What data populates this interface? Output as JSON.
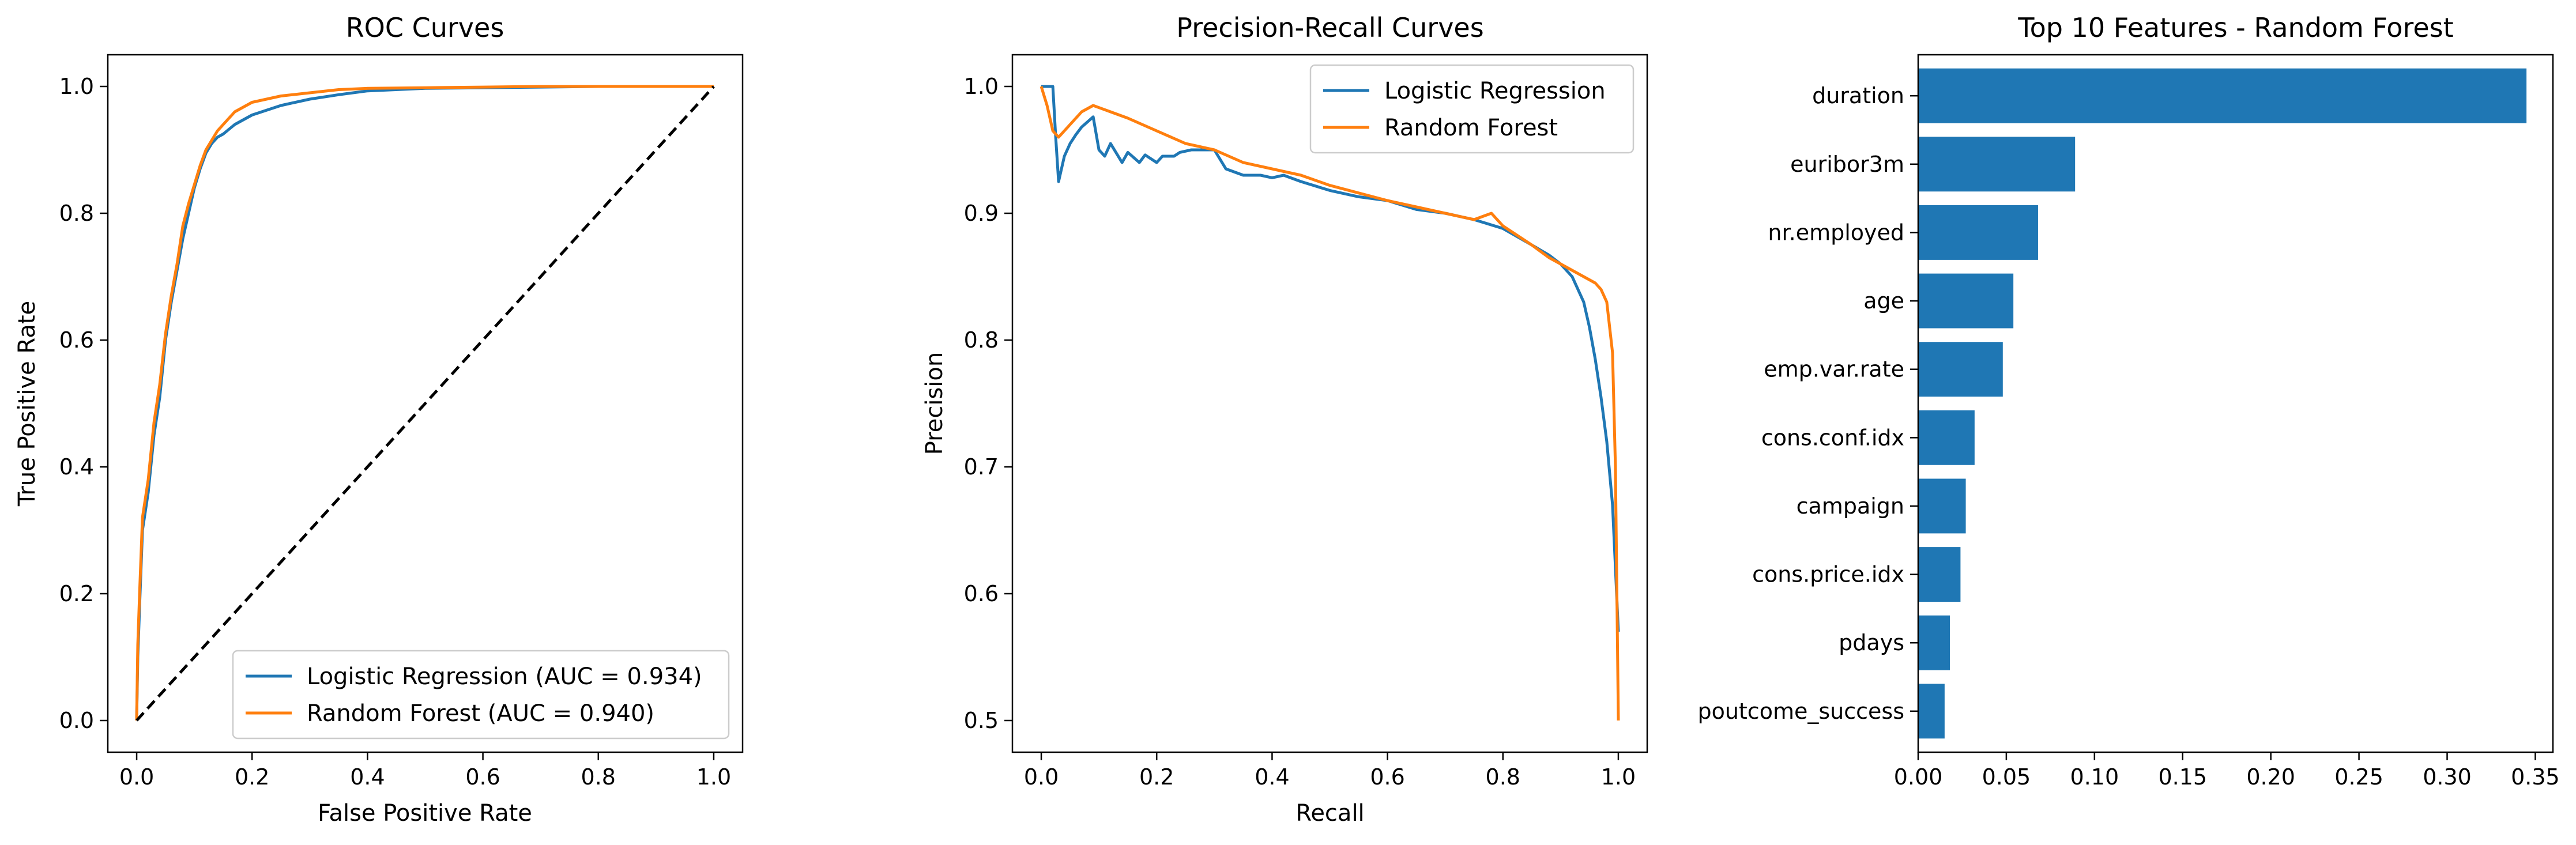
{
  "colors": {
    "series_1": "#1f77b4",
    "series_2": "#ff7f0e",
    "diagonal": "#000000",
    "axes": "#000000"
  },
  "chart_data": [
    {
      "type": "line",
      "title": "ROC Curves",
      "xlabel": "False Positive Rate",
      "ylabel": "True Positive Rate",
      "xlim": [
        -0.05,
        1.05
      ],
      "ylim": [
        -0.05,
        1.05
      ],
      "xticks": [
        "0.0",
        "0.2",
        "0.4",
        "0.6",
        "0.8",
        "1.0"
      ],
      "yticks": [
        "0.0",
        "0.2",
        "0.4",
        "0.6",
        "0.8",
        "1.0"
      ],
      "grid": false,
      "legend_position": "lower-right",
      "series": [
        {
          "name": "Logistic Regression (AUC = 0.934)",
          "color": "#1f77b4",
          "x": [
            0,
            0.002,
            0.005,
            0.01,
            0.02,
            0.03,
            0.04,
            0.05,
            0.06,
            0.07,
            0.08,
            0.09,
            0.1,
            0.11,
            0.12,
            0.13,
            0.14,
            0.15,
            0.17,
            0.2,
            0.25,
            0.3,
            0.35,
            0.4,
            0.5,
            0.6,
            0.7,
            0.8,
            0.9,
            1.0
          ],
          "y": [
            0,
            0.1,
            0.18,
            0.3,
            0.36,
            0.45,
            0.51,
            0.6,
            0.66,
            0.71,
            0.76,
            0.8,
            0.84,
            0.87,
            0.895,
            0.91,
            0.92,
            0.925,
            0.94,
            0.955,
            0.97,
            0.98,
            0.987,
            0.993,
            0.997,
            0.998,
            0.999,
            1.0,
            1.0,
            1.0
          ]
        },
        {
          "name": "Random Forest (AUC = 0.940)",
          "color": "#ff7f0e",
          "x": [
            0,
            0.002,
            0.005,
            0.01,
            0.02,
            0.03,
            0.04,
            0.05,
            0.06,
            0.07,
            0.08,
            0.09,
            0.1,
            0.11,
            0.12,
            0.13,
            0.14,
            0.15,
            0.17,
            0.19,
            0.2,
            0.25,
            0.3,
            0.35,
            0.4,
            0.5,
            0.6,
            0.7,
            0.8,
            0.9,
            1.0
          ],
          "y": [
            0,
            0.12,
            0.2,
            0.32,
            0.38,
            0.47,
            0.53,
            0.61,
            0.67,
            0.72,
            0.78,
            0.815,
            0.845,
            0.875,
            0.9,
            0.915,
            0.93,
            0.94,
            0.96,
            0.97,
            0.975,
            0.985,
            0.99,
            0.995,
            0.997,
            0.998,
            0.999,
            1.0,
            1.0,
            1.0,
            1.0
          ]
        },
        {
          "name": "",
          "color": "#000000",
          "dashed": true,
          "x": [
            0,
            1
          ],
          "y": [
            0,
            1
          ]
        }
      ]
    },
    {
      "type": "line",
      "title": "Precision-Recall Curves",
      "xlabel": "Recall",
      "ylabel": "Precision",
      "xlim": [
        -0.05,
        1.05
      ],
      "ylim": [
        0.475,
        1.025
      ],
      "xticks": [
        "0.0",
        "0.2",
        "0.4",
        "0.6",
        "0.8",
        "1.0"
      ],
      "yticks": [
        "0.5",
        "0.6",
        "0.7",
        "0.8",
        "0.9",
        "1.0"
      ],
      "grid": false,
      "legend_position": "upper-right",
      "series": [
        {
          "name": "Logistic Regression",
          "color": "#1f77b4",
          "x": [
            0,
            0.02,
            0.025,
            0.03,
            0.04,
            0.05,
            0.06,
            0.07,
            0.08,
            0.09,
            0.1,
            0.11,
            0.12,
            0.14,
            0.15,
            0.17,
            0.18,
            0.2,
            0.21,
            0.23,
            0.24,
            0.26,
            0.28,
            0.3,
            0.32,
            0.35,
            0.38,
            0.4,
            0.42,
            0.45,
            0.5,
            0.55,
            0.6,
            0.65,
            0.7,
            0.75,
            0.8,
            0.85,
            0.88,
            0.9,
            0.92,
            0.94,
            0.95,
            0.96,
            0.97,
            0.98,
            0.99,
            1.0
          ],
          "y": [
            1.0,
            1.0,
            0.96,
            0.925,
            0.945,
            0.955,
            0.962,
            0.968,
            0.972,
            0.976,
            0.95,
            0.945,
            0.955,
            0.94,
            0.948,
            0.94,
            0.946,
            0.94,
            0.945,
            0.945,
            0.948,
            0.95,
            0.95,
            0.95,
            0.935,
            0.93,
            0.93,
            0.928,
            0.93,
            0.925,
            0.918,
            0.913,
            0.91,
            0.903,
            0.9,
            0.895,
            0.888,
            0.875,
            0.867,
            0.86,
            0.85,
            0.83,
            0.81,
            0.785,
            0.755,
            0.72,
            0.67,
            0.57
          ]
        },
        {
          "name": "Random Forest",
          "color": "#ff7f0e",
          "x": [
            0,
            0.01,
            0.02,
            0.03,
            0.05,
            0.07,
            0.09,
            0.12,
            0.15,
            0.2,
            0.25,
            0.3,
            0.35,
            0.4,
            0.45,
            0.5,
            0.55,
            0.6,
            0.65,
            0.7,
            0.75,
            0.78,
            0.8,
            0.85,
            0.88,
            0.9,
            0.92,
            0.94,
            0.96,
            0.97,
            0.98,
            0.99,
            0.995,
            1.0
          ],
          "y": [
            1.0,
            0.985,
            0.965,
            0.96,
            0.97,
            0.98,
            0.985,
            0.98,
            0.975,
            0.965,
            0.955,
            0.95,
            0.94,
            0.935,
            0.93,
            0.922,
            0.916,
            0.91,
            0.905,
            0.9,
            0.895,
            0.9,
            0.89,
            0.875,
            0.865,
            0.86,
            0.855,
            0.85,
            0.845,
            0.84,
            0.83,
            0.79,
            0.7,
            0.5
          ]
        }
      ]
    },
    {
      "type": "bar",
      "orientation": "horizontal",
      "title": "Top 10 Features - Random Forest",
      "xlabel": "",
      "ylabel": "",
      "xlim": [
        0,
        0.36
      ],
      "xticks": [
        "0.00",
        "0.05",
        "0.10",
        "0.15",
        "0.20",
        "0.25",
        "0.30",
        "0.35"
      ],
      "grid": false,
      "color": "#1f77b4",
      "categories": [
        "duration",
        "euribor3m",
        "nr.employed",
        "age",
        "emp.var.rate",
        "cons.conf.idx",
        "campaign",
        "cons.price.idx",
        "pdays",
        "poutcome_success"
      ],
      "values": [
        0.345,
        0.089,
        0.068,
        0.054,
        0.048,
        0.032,
        0.027,
        0.024,
        0.018,
        0.015
      ]
    }
  ]
}
